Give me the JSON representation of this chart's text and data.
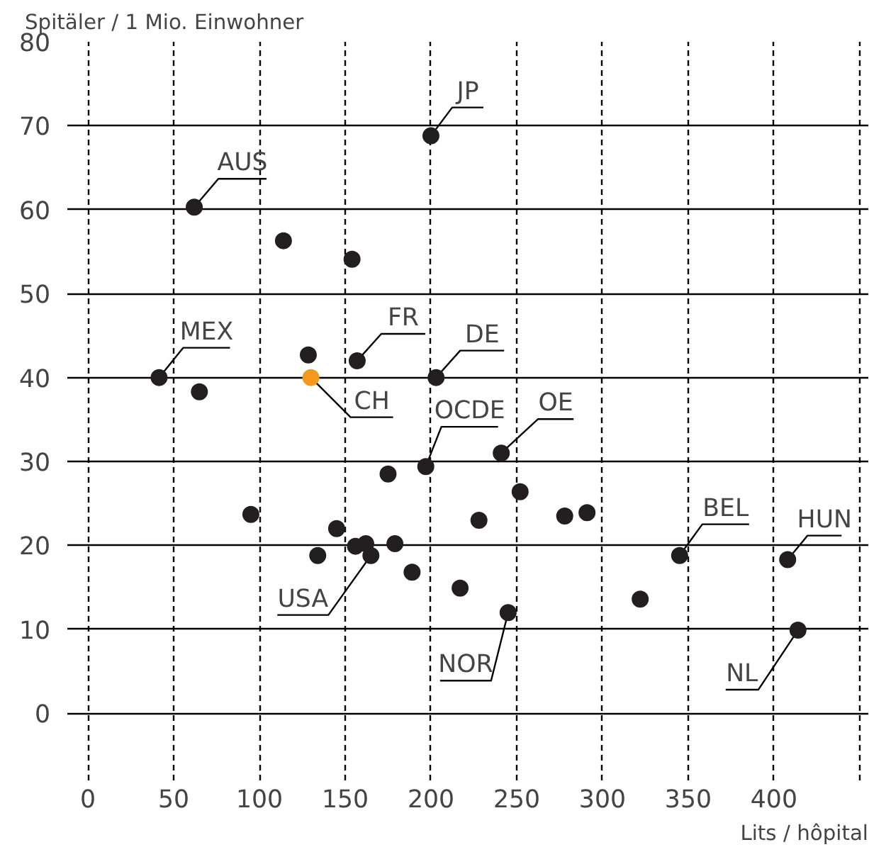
{
  "chart_data": {
    "type": "scatter",
    "xlabel": "Lits / hôpital",
    "ylabel": "Spitäler / 1 Mio. Einwohner",
    "x": [
      62,
      200,
      114,
      154,
      41.5,
      65,
      128.5,
      130,
      157,
      203,
      197,
      241,
      175,
      95,
      252,
      228,
      278,
      291,
      145,
      156,
      162,
      179,
      134,
      165,
      189,
      345,
      408,
      217,
      245,
      322,
      414
    ],
    "values": [
      60.3,
      68.8,
      56.3,
      54.1,
      40,
      38.3,
      42.7,
      40,
      42,
      40,
      29.4,
      31,
      28.5,
      23.7,
      26.4,
      23,
      23.5,
      23.9,
      22,
      19.9,
      20.2,
      20.2,
      18.8,
      18.8,
      16.8,
      18.8,
      18.3,
      14.9,
      12,
      13.6,
      9.9
    ],
    "colors": [
      "#231f20",
      "#231f20",
      "#231f20",
      "#231f20",
      "#231f20",
      "#231f20",
      "#231f20",
      "#f39a1e",
      "#231f20",
      "#231f20",
      "#231f20",
      "#231f20",
      "#231f20",
      "#231f20",
      "#231f20",
      "#231f20",
      "#231f20",
      "#231f20",
      "#231f20",
      "#231f20",
      "#231f20",
      "#231f20",
      "#231f20",
      "#231f20",
      "#231f20",
      "#231f20",
      "#231f20",
      "#231f20",
      "#231f20",
      "#231f20",
      "#231f20"
    ],
    "marker": "circle",
    "xlim": [
      -12,
      455
    ],
    "ylim": [
      -8,
      80
    ],
    "xticks": [
      0,
      50,
      100,
      150,
      200,
      250,
      300,
      350,
      400,
      {
        "value": 450,
        "label": null
      }
    ],
    "yticks": [
      0,
      10,
      20,
      30,
      40,
      50,
      60,
      70,
      80
    ],
    "grid": true,
    "annotations": [
      {
        "text": "AUS",
        "x": 62,
        "y": 60.3
      },
      {
        "text": "JP",
        "x": 200,
        "y": 68.8
      },
      {
        "text": "MEX",
        "x": 41.5,
        "y": 40
      },
      {
        "text": "FR",
        "x": 157,
        "y": 42
      },
      {
        "text": "DE",
        "x": 203,
        "y": 40
      },
      {
        "text": "CH",
        "x": 130,
        "y": 40
      },
      {
        "text": "OCDE",
        "x": 197,
        "y": 29.4
      },
      {
        "text": "OE",
        "x": 241,
        "y": 31
      },
      {
        "text": "BEL",
        "x": 345,
        "y": 18.8
      },
      {
        "text": "HUN",
        "x": 408,
        "y": 18.3
      },
      {
        "text": "USA",
        "x": 165,
        "y": 18.8
      },
      {
        "text": "NOR",
        "x": 245,
        "y": 12
      },
      {
        "text": "NL",
        "x": 414,
        "y": 9.9
      }
    ]
  }
}
